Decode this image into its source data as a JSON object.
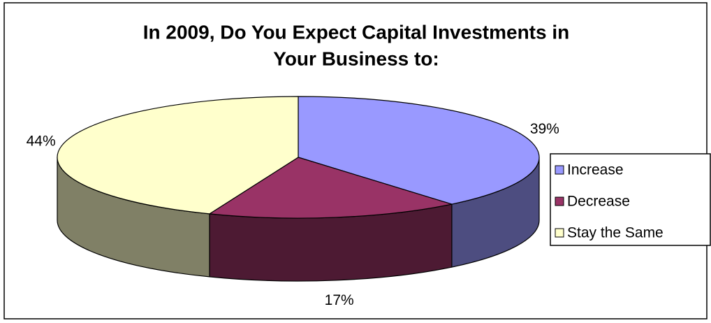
{
  "chart_data": {
    "type": "pie3d",
    "title": [
      "In 2009, Do You Expect Capital Investments in",
      "Your Business to:"
    ],
    "categories": [
      "Increase",
      "Decrease",
      "Stay the Same"
    ],
    "values": [
      39,
      17,
      44
    ],
    "value_labels": [
      "39%",
      "17%",
      "44%"
    ],
    "colors": [
      "#9999ff",
      "#993366",
      "#ffffcc"
    ],
    "legend": "right"
  }
}
